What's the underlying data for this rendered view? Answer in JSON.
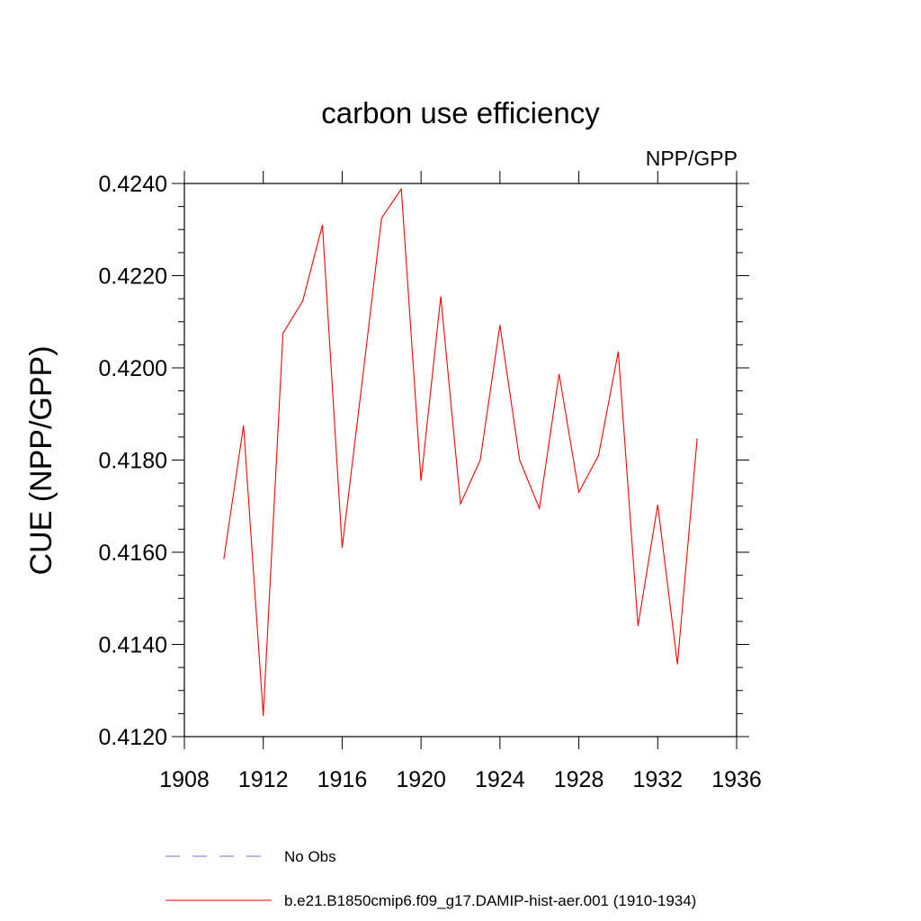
{
  "chart_data": {
    "type": "line",
    "title": "carbon use efficiency",
    "subtitle_right": "NPP/GPP",
    "xlabel": "",
    "ylabel": "CUE  (NPP/GPP)",
    "xlim": [
      1908,
      1936
    ],
    "ylim": [
      0.412,
      0.424
    ],
    "x_ticks": [
      1908,
      1912,
      1916,
      1920,
      1924,
      1928,
      1932,
      1936
    ],
    "x_tick_labels": [
      "1908",
      "1912",
      "1916",
      "1920",
      "1924",
      "1928",
      "1932",
      "1936"
    ],
    "y_ticks": [
      0.412,
      0.414,
      0.416,
      0.418,
      0.42,
      0.422,
      0.424
    ],
    "y_tick_labels": [
      "0.4120",
      "0.4140",
      "0.4160",
      "0.4180",
      "0.4200",
      "0.4220",
      "0.4240"
    ],
    "grid": false,
    "legend_position": "bottom",
    "series": [
      {
        "name": "b.e21.B1850cmip6.f09_g17.DAMIP-hist-aer.001 (1910-1934)",
        "color": "#ff0000",
        "style": "solid",
        "x": [
          1910,
          1911,
          1912,
          1913,
          1914,
          1915,
          1916,
          1917,
          1918,
          1919,
          1920,
          1921,
          1922,
          1923,
          1924,
          1925,
          1926,
          1927,
          1928,
          1929,
          1930,
          1931,
          1932,
          1933,
          1934
        ],
        "values": [
          0.41585,
          0.41875,
          0.41245,
          0.42075,
          0.42145,
          0.4231,
          0.4161,
          0.41965,
          0.42325,
          0.42388,
          0.41755,
          0.42155,
          0.41705,
          0.418,
          0.42093,
          0.418,
          0.41695,
          0.41987,
          0.4173,
          0.4181,
          0.42035,
          0.4144,
          0.41703,
          0.41357,
          0.41847
        ]
      }
    ],
    "legend": [
      {
        "label": "No Obs",
        "color": "#6b6bd6",
        "style": "dashed"
      },
      {
        "label": "b.e21.B1850cmip6.f09_g17.DAMIP-hist-aer.001 (1910-1934)",
        "color": "#ff0000",
        "style": "solid"
      }
    ]
  }
}
